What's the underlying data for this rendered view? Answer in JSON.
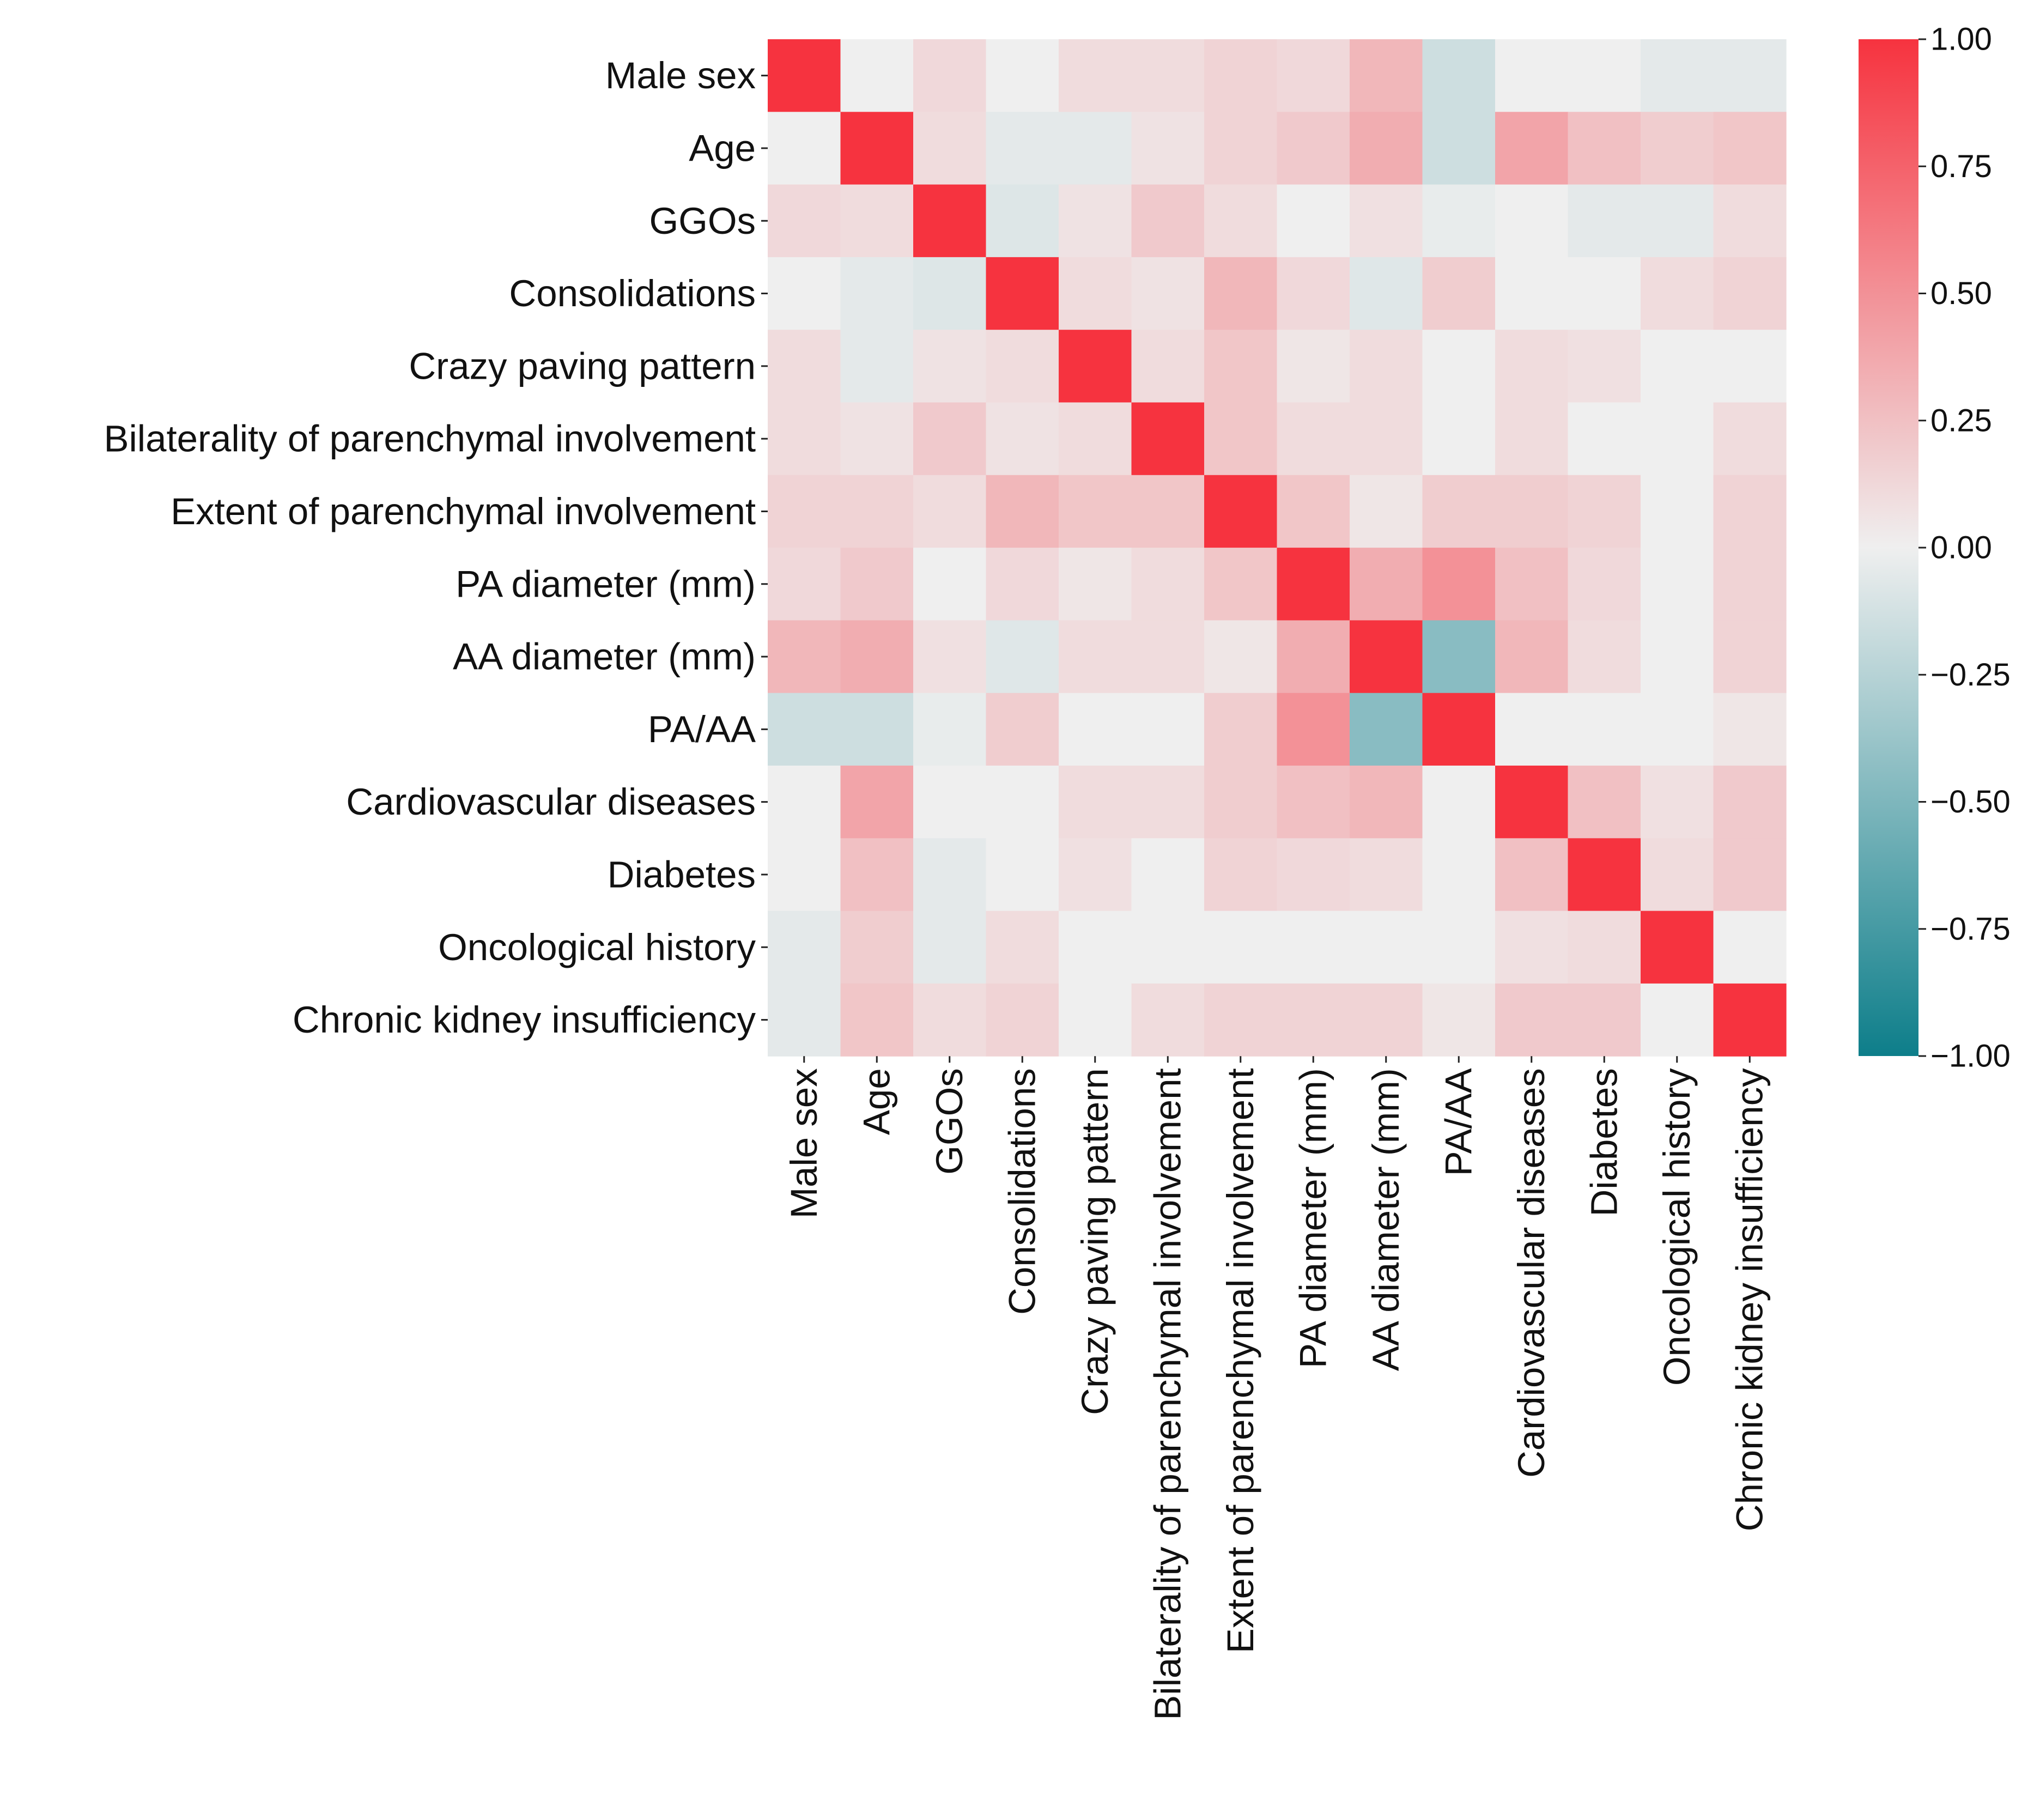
{
  "chart_data": {
    "type": "heatmap",
    "title": "",
    "labels": [
      "Male sex",
      "Age",
      "GGOs",
      "Consolidations",
      "Crazy paving pattern",
      "Bilaterality of parenchymal involvement",
      "Extent of parenchymal involvement",
      "PA diameter (mm)",
      "AA diameter (mm)",
      "PA/AA",
      "Cardiovascular diseases",
      "Diabetes",
      "Oncological history",
      "Chronic kidney insufficiency"
    ],
    "matrix": [
      [
        1.0,
        0.0,
        0.12,
        0.0,
        0.1,
        0.1,
        0.15,
        0.12,
        0.3,
        -0.15,
        0.0,
        0.0,
        -0.05,
        -0.05
      ],
      [
        0.0,
        1.0,
        0.1,
        -0.05,
        -0.05,
        0.07,
        0.15,
        0.2,
        0.35,
        -0.15,
        0.4,
        0.25,
        0.18,
        0.22
      ],
      [
        0.12,
        0.1,
        1.0,
        -0.08,
        0.07,
        0.2,
        0.1,
        0.0,
        0.08,
        -0.03,
        0.0,
        -0.05,
        -0.05,
        0.1
      ],
      [
        0.0,
        -0.05,
        -0.08,
        1.0,
        0.1,
        0.07,
        0.3,
        0.12,
        -0.07,
        0.18,
        0.0,
        0.0,
        0.1,
        0.15
      ],
      [
        0.1,
        -0.05,
        0.07,
        0.1,
        1.0,
        0.1,
        0.22,
        0.05,
        0.1,
        0.0,
        0.1,
        0.08,
        0.0,
        0.0
      ],
      [
        0.1,
        0.07,
        0.2,
        0.07,
        0.1,
        1.0,
        0.22,
        0.1,
        0.1,
        0.0,
        0.1,
        0.0,
        0.0,
        0.1
      ],
      [
        0.15,
        0.15,
        0.1,
        0.3,
        0.22,
        0.22,
        1.0,
        0.22,
        0.05,
        0.18,
        0.18,
        0.15,
        0.0,
        0.15
      ],
      [
        0.12,
        0.2,
        0.0,
        0.12,
        0.05,
        0.1,
        0.22,
        1.0,
        0.35,
        0.5,
        0.25,
        0.12,
        0.0,
        0.15
      ],
      [
        0.3,
        0.35,
        0.08,
        -0.07,
        0.1,
        0.1,
        0.05,
        0.35,
        1.0,
        -0.45,
        0.3,
        0.1,
        0.0,
        0.15
      ],
      [
        -0.15,
        -0.15,
        -0.03,
        0.18,
        0.0,
        0.0,
        0.18,
        0.5,
        -0.45,
        1.0,
        0.0,
        0.0,
        0.0,
        0.05
      ],
      [
        0.0,
        0.4,
        0.0,
        0.0,
        0.1,
        0.1,
        0.18,
        0.25,
        0.3,
        0.0,
        1.0,
        0.25,
        0.08,
        0.2
      ],
      [
        0.0,
        0.25,
        -0.05,
        0.0,
        0.08,
        0.0,
        0.15,
        0.12,
        0.1,
        0.0,
        0.25,
        1.0,
        0.1,
        0.2
      ],
      [
        -0.05,
        0.18,
        -0.05,
        0.1,
        0.0,
        0.0,
        0.0,
        0.0,
        0.0,
        0.0,
        0.08,
        0.1,
        1.0,
        0.0
      ],
      [
        -0.05,
        0.22,
        0.1,
        0.15,
        0.0,
        0.1,
        0.15,
        0.15,
        0.15,
        0.05,
        0.2,
        0.2,
        0.0,
        1.0
      ]
    ],
    "colorbar": {
      "min": -1.0,
      "max": 1.0,
      "ticks": [
        1.0,
        0.75,
        0.5,
        0.25,
        0.0,
        -0.25,
        -0.5,
        -0.75,
        -1.0
      ],
      "tick_labels": [
        "1.00",
        "0.75",
        "0.50",
        "0.25",
        "0.00",
        "−0.25",
        "−0.50",
        "−0.75",
        "−1.00"
      ],
      "colors": {
        "negative": "#0d7e8a",
        "neutral": "#efefef",
        "positive": "#f6333f"
      }
    },
    "xlabel": "",
    "ylabel": "",
    "grid": false
  }
}
